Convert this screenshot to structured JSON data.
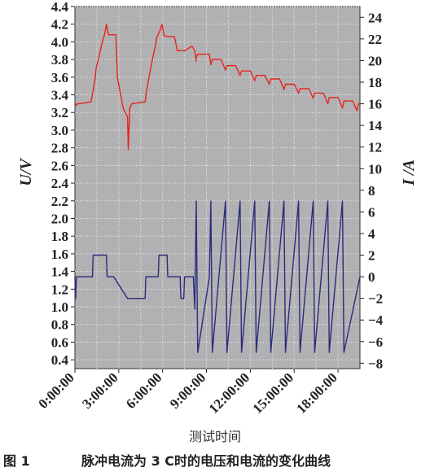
{
  "chart_data": {
    "type": "line",
    "xlabel": "测试时间",
    "ylabel_left": "U/V",
    "ylabel_right": "I /A",
    "x_ticks": [
      "0:00:00",
      "3:00:00",
      "6:00:00",
      "9:00:00",
      "12:00:00",
      "15:00:00",
      "18:00:00"
    ],
    "x_tick_values": [
      0,
      3,
      6,
      9,
      12,
      15,
      18
    ],
    "xlim": [
      0,
      19.5
    ],
    "ylim_left": [
      0.3,
      4.4
    ],
    "ylim_right": [
      -8.5,
      25
    ],
    "y_left_ticks": [
      "0.4",
      "0.6",
      "0.8",
      "1.0",
      "1.2",
      "1.4",
      "1.6",
      "1.8",
      "2.0",
      "2.2",
      "2.4",
      "2.6",
      "2.8",
      "3.0",
      "3.2",
      "3.4",
      "3.6",
      "3.8",
      "4.0",
      "4.2",
      "4.4"
    ],
    "y_right_ticks": [
      "-8",
      "-6",
      "-4",
      "-2",
      "0",
      "2",
      "4",
      "6",
      "8",
      "10",
      "12",
      "14",
      "16",
      "18",
      "20",
      "22",
      "24"
    ],
    "grid": true,
    "series": [
      {
        "axis": "left",
        "color": "#e8231c",
        "x": [
          0,
          0.1,
          0.15,
          0.3,
          1.1,
          1.25,
          1.3,
          1.4,
          1.45,
          1.6,
          1.8,
          2.05,
          2.15,
          2.3,
          2.8,
          2.9,
          3.3,
          3.6,
          3.65,
          3.75,
          3.9,
          4.8,
          4.9,
          5.3,
          5.5,
          5.6,
          5.8,
          5.95,
          6.1,
          6.3,
          6.4,
          6.8,
          6.95,
          7.0,
          7.2,
          7.5,
          8.0,
          8.2,
          8.3,
          8.3,
          8.35,
          8.4,
          9.2,
          9.3,
          9.4,
          10.0,
          10.3,
          10.4,
          11.0,
          11.3,
          11.4,
          12.0,
          12.3,
          12.4,
          13.0,
          13.3,
          13.4,
          14.0,
          14.3,
          14.4,
          15.0,
          15.3,
          15.4,
          16.0,
          16.3,
          16.4,
          17.0,
          17.3,
          17.4,
          18.0,
          18.3,
          18.4,
          19.0,
          19.3,
          19.4,
          19.5
        ],
        "values": [
          3.3,
          3.28,
          3.3,
          3.3,
          3.32,
          3.45,
          3.5,
          3.6,
          3.7,
          3.8,
          3.95,
          4.1,
          4.2,
          4.08,
          4.08,
          3.6,
          3.25,
          3.15,
          2.78,
          3.25,
          3.3,
          3.32,
          3.45,
          3.8,
          3.95,
          4.05,
          4.12,
          4.2,
          4.07,
          4.06,
          4.06,
          4.06,
          3.95,
          3.9,
          3.9,
          3.9,
          3.95,
          3.9,
          3.78,
          3.84,
          3.84,
          3.86,
          3.86,
          3.74,
          3.8,
          3.8,
          3.68,
          3.73,
          3.73,
          3.62,
          3.67,
          3.67,
          3.56,
          3.62,
          3.62,
          3.52,
          3.58,
          3.58,
          3.46,
          3.52,
          3.52,
          3.42,
          3.47,
          3.47,
          3.36,
          3.42,
          3.42,
          3.3,
          3.37,
          3.37,
          3.25,
          3.33,
          3.33,
          3.22,
          3.3,
          3.3
        ]
      },
      {
        "axis": "right",
        "color": "#2b2c7a",
        "x": [
          0,
          0.05,
          0.1,
          1.2,
          1.25,
          2.15,
          2.2,
          2.6,
          2.65,
          3.6,
          3.65,
          4.8,
          4.85,
          5.7,
          5.75,
          6.3,
          6.35,
          7.2,
          7.25,
          7.45,
          7.5,
          8.1,
          8.2,
          8.3,
          8.4,
          9.2,
          9.3,
          9.4,
          10.3,
          10.4,
          11.3,
          11.4,
          12.3,
          12.4,
          13.3,
          13.4,
          14.3,
          14.4,
          15.3,
          15.4,
          16.3,
          16.4,
          17.3,
          17.4,
          18.3,
          18.4,
          19.5
        ],
        "values": [
          0,
          -2,
          0,
          0,
          2,
          2,
          0,
          0,
          0,
          -2,
          -2,
          -2,
          0,
          0,
          2,
          2,
          0,
          0,
          -2,
          -2,
          0,
          0,
          -3,
          7,
          -7,
          0,
          7,
          -7,
          7,
          -7,
          7,
          -7,
          7,
          -7,
          7,
          -7,
          7,
          -7,
          7,
          -7,
          7,
          -7,
          7,
          -7,
          7,
          -7,
          0
        ]
      }
    ]
  },
  "caption": {
    "figure_number": "图 1",
    "text": "脉冲电流为 3 C时的电压和电流的变化曲线"
  }
}
